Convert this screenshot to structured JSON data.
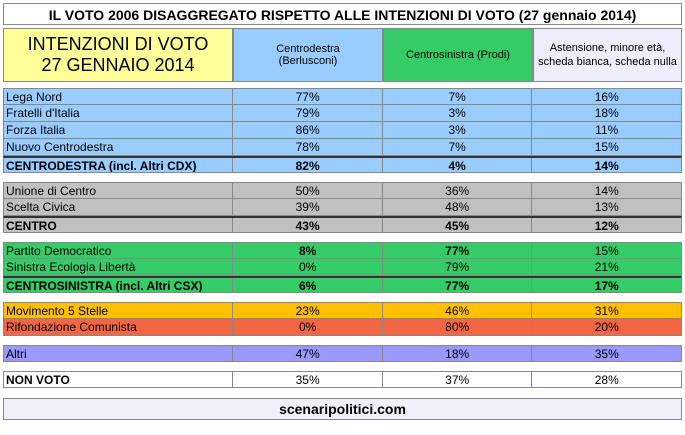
{
  "title": "IL VOTO 2006 DISAGGREGATO RISPETTO ALLE INTENZIONI DI VOTO (27 gennaio 2014)",
  "header": {
    "label": [
      "INTENZIONI DI VOTO",
      "27 GENNAIO 2014"
    ],
    "columns": [
      "Centrodestra (Berlusconi)",
      "Centrosinistra (Prodi)",
      "Astensione, minore età, scheda bianca, scheda nulla"
    ]
  },
  "groups": [
    {
      "rows": [
        [
          "Lega Nord",
          "77%",
          "7%",
          "16%"
        ],
        [
          "Fratelli d'Italia",
          "79%",
          "3%",
          "18%"
        ],
        [
          "Forza Italia",
          "86%",
          "3%",
          "11%"
        ],
        [
          "Nuovo Centrodestra",
          "78%",
          "7%",
          "15%"
        ],
        [
          "CENTRODESTRA (incl. Altri CDX)",
          "82%",
          "4%",
          "14%"
        ]
      ]
    },
    {
      "rows": [
        [
          "Unione di Centro",
          "50%",
          "36%",
          "14%"
        ],
        [
          "Scelta Civica",
          "39%",
          "48%",
          "13%"
        ],
        [
          "CENTRO",
          "43%",
          "45%",
          "12%"
        ]
      ]
    },
    {
      "rows": [
        [
          "Partito Democratico",
          "8%",
          "77%",
          "15%"
        ],
        [
          "Sinistra Ecologia Libertà",
          "0%",
          "79%",
          "21%"
        ],
        [
          "CENTROSINISTRA (incl. Altri CSX)",
          "6%",
          "77%",
          "17%"
        ]
      ]
    },
    {
      "rows": [
        [
          "Movimento 5 Stelle",
          "23%",
          "46%",
          "31%"
        ],
        [
          "Rifondazione Comunista",
          "0%",
          "80%",
          "20%"
        ]
      ]
    },
    {
      "rows": [
        [
          "Altri",
          "47%",
          "18%",
          "35%"
        ]
      ]
    },
    {
      "rows": [
        [
          "NON VOTO",
          "35%",
          "37%",
          "28%"
        ]
      ]
    }
  ],
  "footer": "scenaripolitici.com"
}
